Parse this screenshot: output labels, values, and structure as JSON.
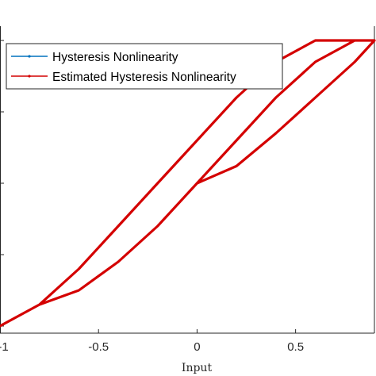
{
  "chart_data": {
    "type": "line",
    "xlabel": "Input",
    "ylabel": "",
    "title": "",
    "xlim": [
      -1,
      0.9
    ],
    "ylim": [
      -1.05,
      1.1
    ],
    "x_ticks": [
      -1,
      -0.5,
      0,
      0.5
    ],
    "x_tick_labels": [
      "-1",
      "-0.5",
      "0",
      "0.5"
    ],
    "y_ticks": [
      -1,
      -0.5,
      0,
      0.5,
      1
    ],
    "grid": false,
    "legend": {
      "placement": "top-left"
    },
    "series": [
      {
        "name": "Hysteresis Nonlinearity",
        "color": "#0072BD",
        "x": [
          0,
          0.2,
          0.4,
          0.6,
          0.8,
          0.9,
          0.6,
          0.4,
          0.2,
          0,
          -0.2,
          -0.4,
          -0.6,
          -0.8,
          -1,
          -0.8,
          -0.6,
          -0.4,
          -0.2,
          0,
          0.2,
          0.4,
          0.6,
          0.8,
          0.9
        ],
        "y": [
          0,
          0.12,
          0.35,
          0.6,
          0.85,
          1.0,
          1.0,
          0.85,
          0.6,
          0.3,
          0.0,
          -0.3,
          -0.6,
          -0.85,
          -1.0,
          -0.85,
          -0.75,
          -0.55,
          -0.3,
          0.0,
          0.3,
          0.6,
          0.85,
          1.0,
          1.0
        ]
      },
      {
        "name": "Estimated Hysteresis Nonlinearity",
        "color": "#D40000",
        "x": [
          0,
          0.2,
          0.4,
          0.6,
          0.8,
          0.9,
          0.6,
          0.4,
          0.2,
          0,
          -0.2,
          -0.4,
          -0.6,
          -0.8,
          -1,
          -0.8,
          -0.6,
          -0.4,
          -0.2,
          0,
          0.2,
          0.4,
          0.6,
          0.8,
          0.9
        ],
        "y": [
          0,
          0.12,
          0.35,
          0.6,
          0.85,
          1.0,
          1.0,
          0.85,
          0.6,
          0.3,
          0.0,
          -0.3,
          -0.6,
          -0.85,
          -1.0,
          -0.85,
          -0.75,
          -0.55,
          -0.3,
          0.0,
          0.3,
          0.6,
          0.85,
          1.0,
          1.0
        ]
      }
    ]
  }
}
